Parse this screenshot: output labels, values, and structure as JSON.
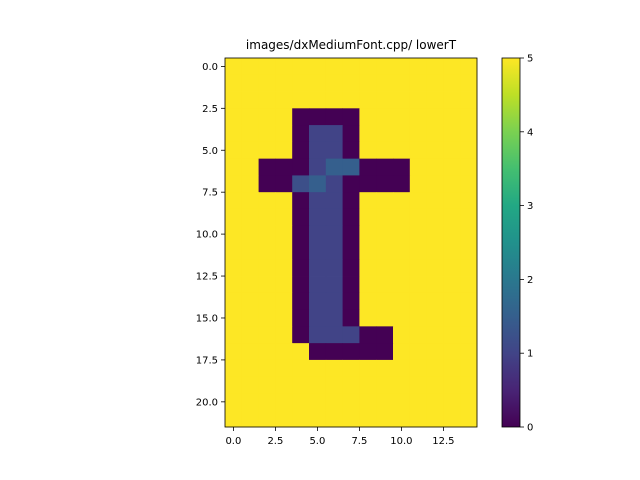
{
  "chart_data": {
    "type": "heatmap",
    "title": "images/dxMediumFont.cpp/ lowerT",
    "xlabel": "",
    "ylabel": "",
    "x_extent": [
      -0.5,
      14.5
    ],
    "y_extent": [
      21.5,
      -0.5
    ],
    "x_ticks": [
      0.0,
      2.5,
      5.0,
      7.5,
      10.0,
      12.5
    ],
    "x_tick_labels": [
      "0.0",
      "2.5",
      "5.0",
      "7.5",
      "10.0",
      "12.5"
    ],
    "y_ticks": [
      0.0,
      2.5,
      5.0,
      7.5,
      10.0,
      12.5,
      15.0,
      17.5,
      20.0
    ],
    "y_tick_labels": [
      "0.0",
      "2.5",
      "5.0",
      "7.5",
      "10.0",
      "12.5",
      "15.0",
      "17.5",
      "20.0"
    ],
    "colorbar": {
      "range": [
        0,
        5
      ],
      "ticks": [
        0,
        1,
        2,
        3,
        4,
        5
      ],
      "tick_labels": [
        "0",
        "1",
        "2",
        "3",
        "4",
        "5"
      ],
      "colormap": "viridis"
    },
    "grid": false,
    "matrix": [
      [
        5,
        5,
        5,
        5,
        5,
        5,
        5,
        5,
        5,
        5,
        5,
        5,
        5,
        5,
        5
      ],
      [
        5,
        5,
        5,
        5,
        5,
        5,
        5,
        5,
        5,
        5,
        5,
        5,
        5,
        5,
        5
      ],
      [
        5,
        5,
        5,
        5,
        5,
        5,
        5,
        5,
        5,
        5,
        5,
        5,
        5,
        5,
        5
      ],
      [
        5,
        5,
        5,
        5,
        0,
        0,
        0,
        0,
        5,
        5,
        5,
        5,
        5,
        5,
        5
      ],
      [
        5,
        5,
        5,
        5,
        0,
        1,
        1,
        0,
        5,
        5,
        5,
        5,
        5,
        5,
        5
      ],
      [
        5,
        5,
        5,
        5,
        0,
        1,
        1,
        0,
        5,
        5,
        5,
        5,
        5,
        5,
        5
      ],
      [
        5,
        5,
        0,
        0,
        0,
        1,
        1.5,
        1.5,
        0,
        0,
        0,
        5,
        5,
        5,
        5
      ],
      [
        5,
        5,
        0,
        0,
        1.2,
        1.5,
        1,
        0,
        0,
        0,
        0,
        5,
        5,
        5,
        5
      ],
      [
        5,
        5,
        5,
        5,
        0,
        1,
        1,
        0,
        5,
        5,
        5,
        5,
        5,
        5,
        5
      ],
      [
        5,
        5,
        5,
        5,
        0,
        1,
        1,
        0,
        5,
        5,
        5,
        5,
        5,
        5,
        5
      ],
      [
        5,
        5,
        5,
        5,
        0,
        1,
        1,
        0,
        5,
        5,
        5,
        5,
        5,
        5,
        5
      ],
      [
        5,
        5,
        5,
        5,
        0,
        1,
        1,
        0,
        5,
        5,
        5,
        5,
        5,
        5,
        5
      ],
      [
        5,
        5,
        5,
        5,
        0,
        1,
        1,
        0,
        5,
        5,
        5,
        5,
        5,
        5,
        5
      ],
      [
        5,
        5,
        5,
        5,
        0,
        1,
        1,
        0,
        5,
        5,
        5,
        5,
        5,
        5,
        5
      ],
      [
        5,
        5,
        5,
        5,
        0,
        1,
        1,
        0,
        5,
        5,
        5,
        5,
        5,
        5,
        5
      ],
      [
        5,
        5,
        5,
        5,
        0,
        1,
        1,
        0,
        5,
        5,
        5,
        5,
        5,
        5,
        5
      ],
      [
        5,
        5,
        5,
        5,
        0,
        1,
        1,
        1,
        0,
        0,
        5,
        5,
        5,
        5,
        5
      ],
      [
        5,
        5,
        5,
        5,
        5,
        0,
        0,
        0,
        0,
        0,
        5,
        5,
        5,
        5,
        5
      ],
      [
        5,
        5,
        5,
        5,
        5,
        5,
        5,
        5,
        5,
        5,
        5,
        5,
        5,
        5,
        5
      ],
      [
        5,
        5,
        5,
        5,
        5,
        5,
        5,
        5,
        5,
        5,
        5,
        5,
        5,
        5,
        5
      ],
      [
        5,
        5,
        5,
        5,
        5,
        5,
        5,
        5,
        5,
        5,
        5,
        5,
        5,
        5,
        5
      ],
      [
        5,
        5,
        5,
        5,
        5,
        5,
        5,
        5,
        5,
        5,
        5,
        5,
        5,
        5,
        5
      ]
    ]
  }
}
